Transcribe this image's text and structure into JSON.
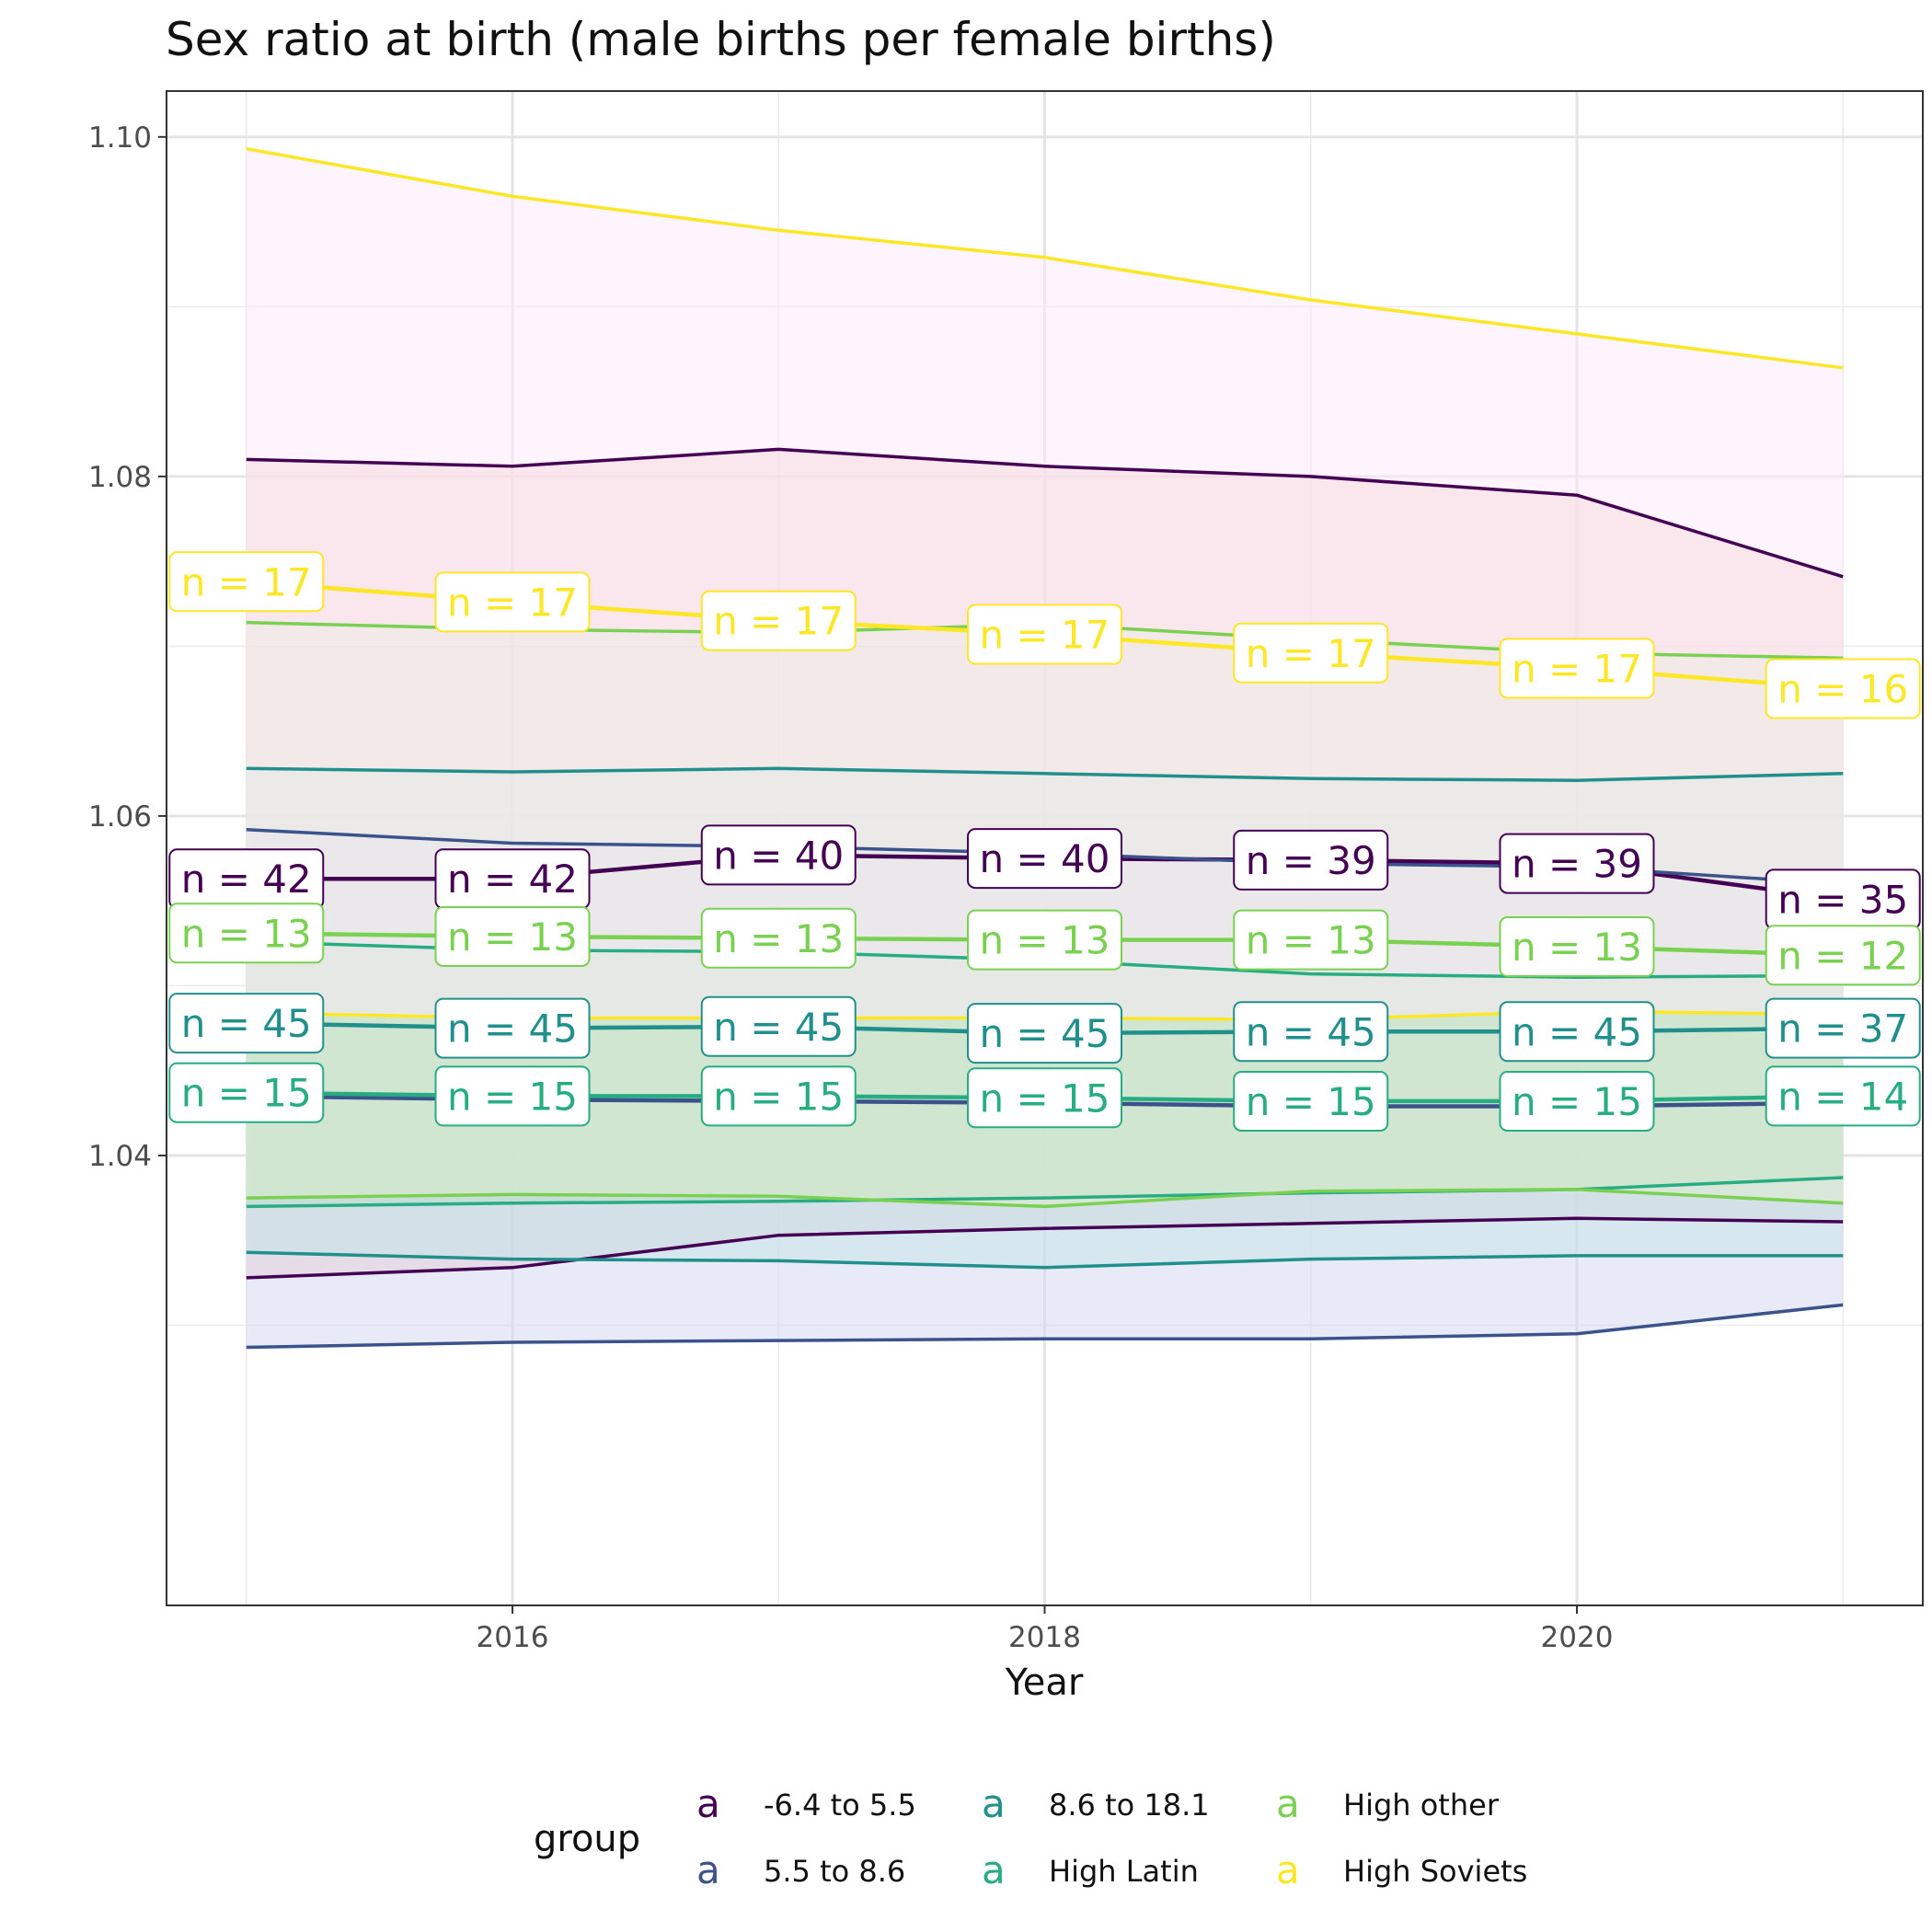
{
  "chart_data": {
    "type": "line",
    "title": "Sex ratio at birth (male births per female births)",
    "xlabel": "Year",
    "ylabel": "",
    "x": [
      2015,
      2016,
      2017,
      2018,
      2019,
      2020,
      2021
    ],
    "xticks": [
      2016,
      2018,
      2020
    ],
    "xtick_labels": [
      "2016",
      "2018",
      "2020"
    ],
    "xlim": [
      2014.7,
      2021.3
    ],
    "yticks": [
      1.04,
      1.06,
      1.08,
      1.1
    ],
    "ytick_labels": [
      "1.04",
      "1.06",
      "1.08",
      "1.10"
    ],
    "ylim": [
      1.0135,
      1.1027
    ],
    "grid": true,
    "legend_position": "bottom",
    "legend_title": "group",
    "legend_glyph": "a",
    "series": [
      {
        "name": "-6.4 to 5.5",
        "color": "#440154",
        "fill": "#f4c7bf",
        "mean": [
          1.0563,
          1.0563,
          1.0577,
          1.0575,
          1.0574,
          1.0572,
          1.0551
        ],
        "upper": [
          1.081,
          1.0806,
          1.0816,
          1.0806,
          1.08,
          1.0789,
          1.0741
        ],
        "lower": [
          1.0328,
          1.0334,
          1.0353,
          1.0357,
          1.036,
          1.0363,
          1.0361
        ],
        "n": [
          42,
          42,
          40,
          40,
          39,
          39,
          35
        ]
      },
      {
        "name": "5.5 to 8.6",
        "color": "#3b528b",
        "fill": "#d2d6f2",
        "mean": [
          1.0435,
          1.0433,
          1.0432,
          1.0431,
          1.0429,
          1.0429,
          1.0431
        ],
        "upper": [
          1.0592,
          1.0584,
          1.0582,
          1.0578,
          1.0572,
          1.057,
          1.056
        ],
        "lower": [
          1.0287,
          1.029,
          1.0291,
          1.0292,
          1.0292,
          1.0295,
          1.0312
        ],
        "n": [
          null,
          null,
          null,
          null,
          null,
          null,
          null
        ]
      },
      {
        "name": "8.6 to 18.1",
        "color": "#21908c",
        "fill": "#c4e3e7",
        "mean": [
          1.0478,
          1.0475,
          1.0476,
          1.0472,
          1.0473,
          1.0473,
          1.0475
        ],
        "upper": [
          1.0628,
          1.0626,
          1.0628,
          1.0625,
          1.0622,
          1.0621,
          1.0625
        ],
        "lower": [
          1.0343,
          1.0339,
          1.0338,
          1.0334,
          1.0339,
          1.0341,
          1.0341
        ],
        "n": [
          45,
          45,
          45,
          45,
          45,
          45,
          37
        ]
      },
      {
        "name": "High Latin",
        "color": "#27ad81",
        "fill": "#b9dbc8",
        "mean": [
          1.0437,
          1.0435,
          1.0435,
          1.0434,
          1.0432,
          1.0432,
          1.0435
        ],
        "upper": [
          1.0526,
          1.0521,
          1.052,
          1.0515,
          1.0507,
          1.0505,
          1.0506
        ],
        "lower": [
          1.037,
          1.0372,
          1.0373,
          1.0375,
          1.0378,
          1.038,
          1.0387
        ],
        "n": [
          15,
          15,
          15,
          15,
          15,
          15,
          14
        ]
      },
      {
        "name": "High other",
        "color": "#7ad151",
        "fill": "#dcedca",
        "mean": [
          1.0531,
          1.0529,
          1.0528,
          1.0527,
          1.0527,
          1.0523,
          1.0518
        ],
        "upper": [
          1.0714,
          1.071,
          1.0708,
          1.0713,
          1.0704,
          1.0696,
          1.0693
        ],
        "lower": [
          1.0375,
          1.0377,
          1.0376,
          1.037,
          1.0379,
          1.038,
          1.0372
        ],
        "n": [
          13,
          13,
          13,
          13,
          13,
          13,
          12
        ]
      },
      {
        "name": "High Soviets",
        "color": "#fde725",
        "fill": "#fbe9fb",
        "mean": [
          1.0738,
          1.0726,
          1.0715,
          1.0707,
          1.0696,
          1.0687,
          1.0675
        ],
        "upper": [
          1.0993,
          1.0965,
          1.0945,
          1.0929,
          1.0904,
          1.0884,
          1.0864
        ],
        "lower": [
          1.0484,
          1.0481,
          1.0481,
          1.0481,
          1.048,
          1.0485,
          1.0483
        ],
        "n": [
          17,
          17,
          17,
          17,
          17,
          17,
          16
        ]
      }
    ]
  }
}
